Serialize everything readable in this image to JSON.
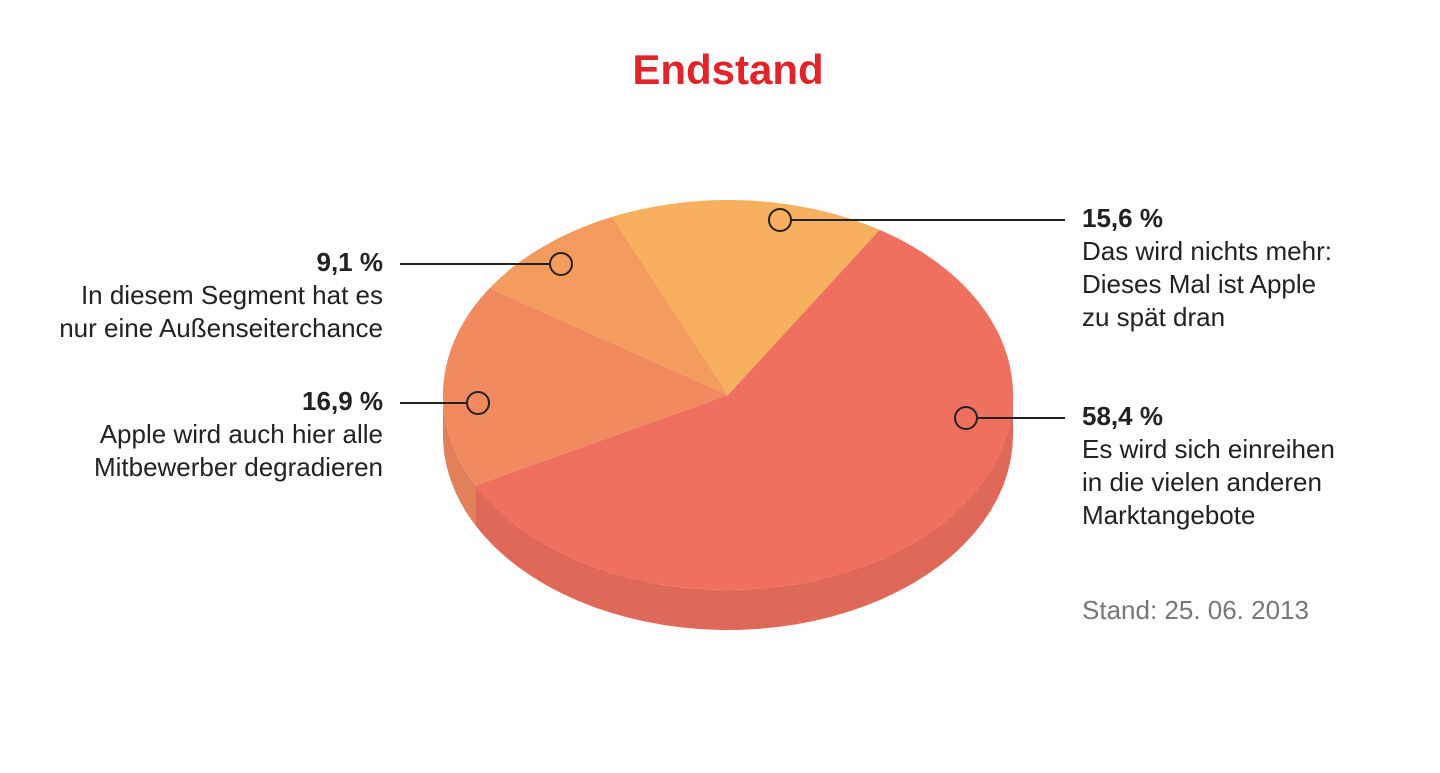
{
  "chart_data": {
    "type": "pie",
    "title": "Endstand",
    "values": [
      15.6,
      58.4,
      16.9,
      9.1
    ],
    "value_labels": [
      "15,6 %",
      "58,4 %",
      "16,9 %",
      "9,1 %"
    ],
    "categories": [
      [
        "Das wird nichts mehr:",
        "Dieses Mal ist Apple",
        "zu spät dran"
      ],
      [
        "Es wird sich einreihen",
        "in die vielen anderen",
        "Marktangebote"
      ],
      [
        "Apple wird auch hier alle",
        "Mitbewerber degradieren"
      ],
      [
        "In diesem Segment hat es",
        "nur eine Außenseiterchance"
      ]
    ],
    "colors": [
      "#f6b05e",
      "#f07060",
      "#f28a60",
      "#f49c5e"
    ],
    "note": "Stand: 25. 06. 2013"
  }
}
